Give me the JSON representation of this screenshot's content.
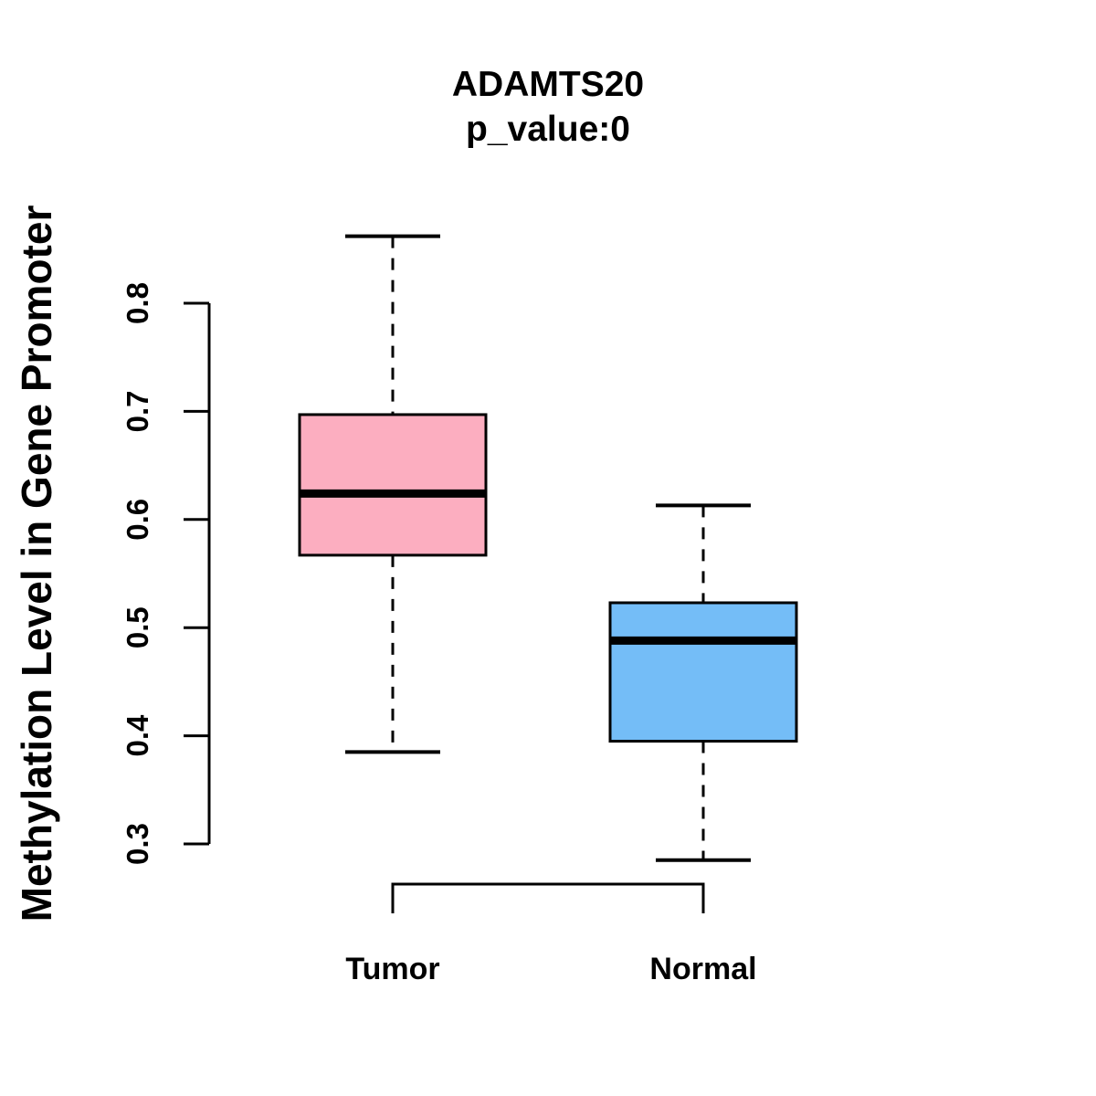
{
  "header": {
    "title": "ADAMTS20",
    "subtitle": "p_value:0"
  },
  "chart_data": {
    "type": "boxplot",
    "title": "ADAMTS20",
    "subtitle": "p_value:0",
    "ylabel": "Methylation Level in Gene Promoter",
    "xlabel": "",
    "categories": [
      "Tumor",
      "Normal"
    ],
    "ylim": [
      0.3,
      0.8
    ],
    "y_ticks": [
      0.3,
      0.4,
      0.5,
      0.6,
      0.7,
      0.8
    ],
    "grid": false,
    "legend": "none",
    "series": [
      {
        "name": "Tumor",
        "color": "#FCAEC0",
        "stats": {
          "lower_whisker": 0.385,
          "q1": 0.567,
          "median": 0.624,
          "q3": 0.697,
          "upper_whisker": 0.862
        }
      },
      {
        "name": "Normal",
        "color": "#74BDF7",
        "stats": {
          "lower_whisker": 0.285,
          "q1": 0.395,
          "median": 0.488,
          "q3": 0.523,
          "upper_whisker": 0.613
        }
      }
    ],
    "colors": {
      "line": "#000000",
      "background": "#FFFFFF"
    }
  }
}
